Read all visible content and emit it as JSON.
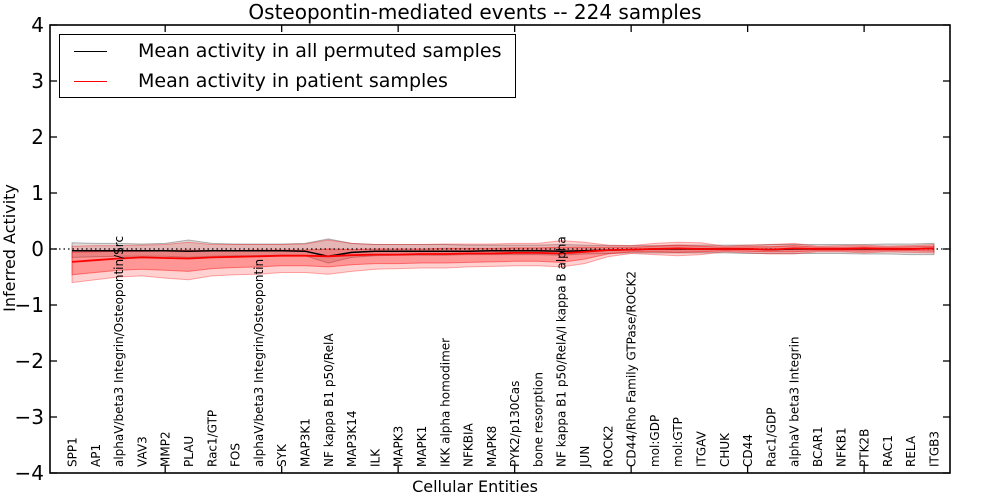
{
  "figure": {
    "title": "Osteopontin-mediated events -- 224 samples",
    "xlabel": "Cellular Entities",
    "ylabel": "Inferred Activity",
    "legend": [
      {
        "label": "Mean activity in all permuted samples",
        "color": "#000000"
      },
      {
        "label": "Mean activity in patient samples",
        "color": "#ff0000"
      }
    ]
  },
  "chart_data": {
    "type": "line",
    "title": "Osteopontin-mediated events -- 224 samples",
    "xlabel": "Cellular Entities",
    "ylabel": "Inferred Activity",
    "ylim": [
      -4,
      4
    ],
    "yticks": [
      -4,
      -3,
      -2,
      -1,
      0,
      1,
      2,
      3,
      4
    ],
    "xtick_step": 5,
    "grid": false,
    "zero_line": true,
    "legend_position": "upper left",
    "categories": [
      "SPP1",
      "AP1",
      "alphaV/beta3 Integrin/Osteopontin/Src",
      "VAV3",
      "MMP2",
      "PLAU",
      "Rac1/GTP",
      "FOS",
      "alphaV/beta3 Integrin/Osteopontin",
      "SYK",
      "MAP3K1",
      "NF kappa B1 p50/RelA",
      "MAP3K14",
      "ILK",
      "MAPK3",
      "MAPK1",
      "IKK alpha homodimer",
      "NFKBIA",
      "MAPK8",
      "PYK2/p130Cas",
      "bone resorption",
      "NF kappa B1 p50/RelA/I kappa B alpha",
      "JUN",
      "ROCK2",
      "CD44/Rho Family GTPase/ROCK2",
      "mol:GDP",
      "mol:GTP",
      "ITGAV",
      "CHUK",
      "CD44",
      "Rac1/GDP",
      "alphaV beta3 Integrin",
      "BCAR1",
      "NFKB1",
      "PTK2B",
      "RAC1",
      "RELA",
      "ITGB3"
    ],
    "series": [
      {
        "name": "Mean activity in all permuted samples",
        "color": "#000000",
        "linewidth": 1.5,
        "values": [
          -0.03,
          -0.03,
          -0.03,
          -0.03,
          -0.03,
          -0.04,
          -0.03,
          -0.03,
          -0.03,
          -0.03,
          -0.04,
          -0.13,
          -0.06,
          -0.04,
          -0.04,
          -0.04,
          -0.04,
          -0.04,
          -0.03,
          -0.03,
          -0.03,
          -0.04,
          -0.03,
          -0.02,
          -0.01,
          0,
          0,
          0,
          0,
          0,
          -0.01,
          0,
          0,
          0,
          0,
          0,
          0,
          0.01
        ]
      },
      {
        "name": "Mean activity in patient samples",
        "color": "#ff0000",
        "linewidth": 1.8,
        "values": [
          -0.23,
          -0.2,
          -0.17,
          -0.15,
          -0.16,
          -0.17,
          -0.15,
          -0.14,
          -0.13,
          -0.12,
          -0.12,
          -0.13,
          -0.11,
          -0.1,
          -0.1,
          -0.09,
          -0.09,
          -0.08,
          -0.08,
          -0.07,
          -0.07,
          -0.08,
          -0.05,
          -0.02,
          -0.01,
          0,
          0.01,
          0,
          0,
          0,
          -0.01,
          0.01,
          0,
          0,
          0.01,
          0,
          0,
          0.01
        ]
      }
    ],
    "bands": [
      {
        "name": "permuted-range",
        "color": "#000000",
        "opacity": 0.13,
        "lower": [
          -0.15,
          -0.14,
          -0.13,
          -0.13,
          -0.13,
          -0.15,
          -0.13,
          -0.12,
          -0.12,
          -0.11,
          -0.12,
          -0.25,
          -0.15,
          -0.12,
          -0.11,
          -0.11,
          -0.11,
          -0.1,
          -0.1,
          -0.1,
          -0.1,
          -0.11,
          -0.09,
          -0.08,
          -0.07,
          -0.07,
          -0.07,
          -0.07,
          -0.07,
          -0.08,
          -0.08,
          -0.08,
          -0.08,
          -0.08,
          -0.09,
          -0.09,
          -0.1,
          -0.1
        ],
        "upper": [
          0.11,
          0.1,
          0.1,
          0.09,
          0.1,
          0.16,
          0.1,
          0.09,
          0.09,
          0.09,
          0.1,
          0.18,
          0.1,
          0.08,
          0.08,
          0.08,
          0.08,
          0.07,
          0.07,
          0.07,
          0.07,
          0.08,
          0.07,
          0.06,
          0.06,
          0.06,
          0.07,
          0.07,
          0.07,
          0.07,
          0.08,
          0.08,
          0.08,
          0.08,
          0.08,
          0.09,
          0.09,
          0.1
        ]
      },
      {
        "name": "patient-outer-range",
        "color": "#ff0000",
        "opacity": 0.18,
        "lower": [
          -0.6,
          -0.55,
          -0.5,
          -0.48,
          -0.52,
          -0.55,
          -0.48,
          -0.46,
          -0.45,
          -0.42,
          -0.42,
          -0.45,
          -0.4,
          -0.36,
          -0.35,
          -0.34,
          -0.34,
          -0.32,
          -0.31,
          -0.3,
          -0.3,
          -0.32,
          -0.26,
          -0.14,
          -0.08,
          -0.1,
          -0.12,
          -0.1,
          -0.05,
          -0.07,
          -0.09,
          -0.09,
          -0.05,
          -0.05,
          -0.07,
          -0.05,
          -0.06,
          -0.07
        ],
        "upper": [
          0.05,
          0.06,
          0.06,
          0.07,
          0.08,
          0.12,
          0.08,
          0.08,
          0.08,
          0.08,
          0.09,
          0.16,
          0.1,
          0.08,
          0.08,
          0.08,
          0.09,
          0.09,
          0.09,
          0.1,
          0.1,
          0.15,
          0.12,
          0.07,
          0.06,
          0.1,
          0.12,
          0.11,
          0.05,
          0.07,
          0.08,
          0.1,
          0.05,
          0.06,
          0.07,
          0.05,
          0.06,
          0.08
        ]
      },
      {
        "name": "patient-inner-range",
        "color": "#ff0000",
        "opacity": 0.28,
        "lower": [
          -0.46,
          -0.42,
          -0.38,
          -0.36,
          -0.38,
          -0.4,
          -0.35,
          -0.33,
          -0.32,
          -0.3,
          -0.3,
          -0.32,
          -0.28,
          -0.26,
          -0.26,
          -0.25,
          -0.25,
          -0.24,
          -0.23,
          -0.22,
          -0.22,
          -0.24,
          -0.18,
          -0.09,
          -0.05,
          -0.05,
          -0.06,
          -0.05,
          -0.03,
          -0.04,
          -0.05,
          -0.05,
          -0.03,
          -0.03,
          -0.04,
          -0.03,
          -0.03,
          -0.04
        ],
        "upper": [
          -0.06,
          -0.05,
          -0.04,
          -0.04,
          -0.03,
          -0.02,
          -0.03,
          -0.03,
          -0.02,
          -0.02,
          -0.02,
          0.0,
          -0.01,
          0.0,
          0.0,
          0.0,
          0.01,
          0.01,
          0.01,
          0.02,
          0.02,
          0.03,
          0.03,
          0.03,
          0.03,
          0.05,
          0.07,
          0.05,
          0.03,
          0.04,
          0.04,
          0.06,
          0.03,
          0.03,
          0.04,
          0.03,
          0.04,
          0.05
        ]
      }
    ]
  }
}
